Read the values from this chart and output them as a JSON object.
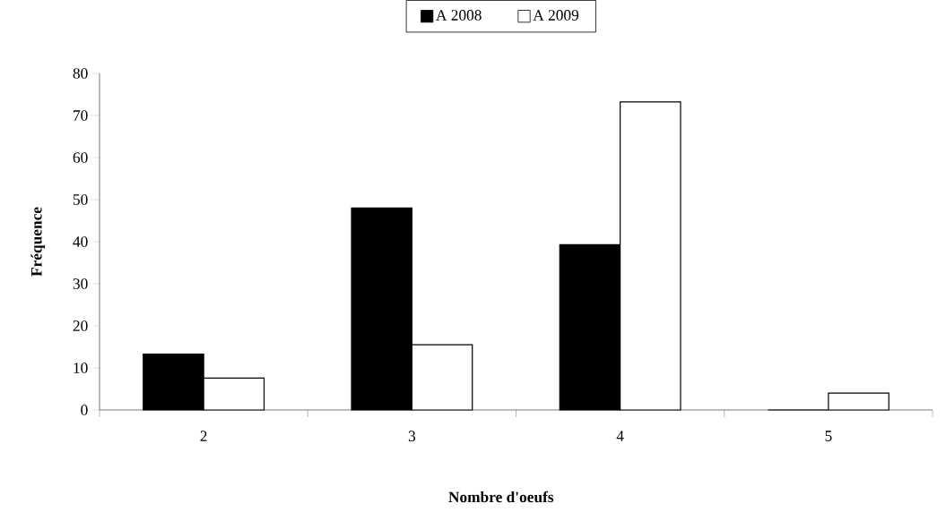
{
  "chart_data": {
    "type": "bar",
    "xlabel": "Nombre d'oeufs",
    "ylabel": "Fréquence",
    "categories": [
      "2",
      "3",
      "4",
      "5"
    ],
    "series": [
      {
        "name": "A 2008",
        "color": "#000000",
        "values": [
          13.3,
          48,
          39.3,
          0
        ]
      },
      {
        "name": "A 2009",
        "color": "#ffffff",
        "values": [
          7.6,
          15.5,
          73.2,
          4
        ]
      }
    ],
    "ylim": [
      0,
      80
    ],
    "yticks": [
      0,
      10,
      20,
      30,
      40,
      50,
      60,
      70,
      80
    ],
    "legend": "top",
    "grid": false
  }
}
